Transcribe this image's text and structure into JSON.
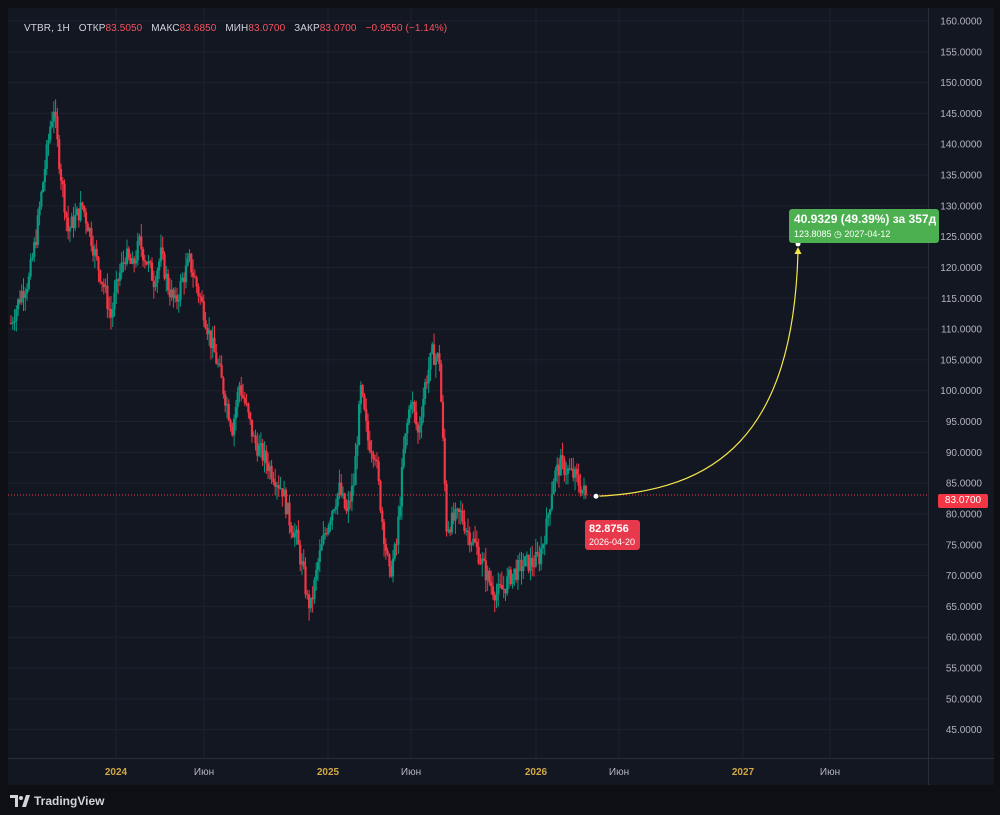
{
  "legend": {
    "symbol": "VTBR, 1H",
    "open_label": "ОТКР",
    "open_value": "83.5050",
    "high_label": "МАКС",
    "high_value": "83.6850",
    "low_label": "МИН",
    "low_value": "83.0700",
    "close_label": "ЗАКР",
    "close_value": "83.0700",
    "change": "−0.9550 (−1.14%)"
  },
  "last_price_label": "83.0700",
  "annotation": {
    "gain_main": "40.9329 (49.39%) за 357д",
    "gain_sub": "123.8085 ◷ 2027-04-12",
    "start_price": "82.8756",
    "start_date": "2026-04-20"
  },
  "branding": {
    "logo_text": "TradingView"
  },
  "colors": {
    "background": "#131722",
    "up": "#089981",
    "down": "#f23645",
    "curve": "#f5e64a",
    "gain_box": "#4caf50",
    "axis_text": "#b2b5be",
    "year_text": "#d1a847"
  },
  "chart_data": {
    "type": "candlestick",
    "symbol": "VTBR",
    "interval": "1H",
    "ylim": [
      40.4,
      162.1
    ],
    "yticks": [
      "160.0000",
      "155.0000",
      "150.0000",
      "145.0000",
      "140.0000",
      "135.0000",
      "130.0000",
      "125.0000",
      "120.0000",
      "115.0000",
      "110.0000",
      "105.0000",
      "100.0000",
      "95.0000",
      "90.0000",
      "85.0000",
      "80.0000",
      "75.0000",
      "70.0000",
      "65.0000",
      "60.0000",
      "55.0000",
      "50.0000",
      "45.0000"
    ],
    "xticks": [
      {
        "label": "2024",
        "year": true
      },
      {
        "label": "Июн",
        "year": false
      },
      {
        "label": "2025",
        "year": true
      },
      {
        "label": "Июн",
        "year": false
      },
      {
        "label": "2026",
        "year": true
      },
      {
        "label": "Июн",
        "year": false
      },
      {
        "label": "2027",
        "year": true
      },
      {
        "label": "Июн",
        "year": false
      }
    ],
    "close_path": [
      [
        0,
        111
      ],
      [
        3,
        116
      ],
      [
        5,
        118
      ],
      [
        7,
        125
      ],
      [
        9,
        134
      ],
      [
        11,
        143
      ],
      [
        12,
        146
      ],
      [
        13,
        140
      ],
      [
        14,
        135
      ],
      [
        16,
        126
      ],
      [
        18,
        128
      ],
      [
        20,
        130
      ],
      [
        22,
        126
      ],
      [
        24,
        121
      ],
      [
        26,
        117
      ],
      [
        28,
        112
      ],
      [
        30,
        118
      ],
      [
        32,
        122
      ],
      [
        34,
        120
      ],
      [
        36,
        124
      ],
      [
        38,
        121
      ],
      [
        40,
        118
      ],
      [
        42,
        122
      ],
      [
        44,
        117
      ],
      [
        46,
        114
      ],
      [
        48,
        118
      ],
      [
        50,
        121
      ],
      [
        52,
        117
      ],
      [
        54,
        113
      ],
      [
        56,
        108
      ],
      [
        58,
        104
      ],
      [
        60,
        99
      ],
      [
        62,
        94
      ],
      [
        64,
        101
      ],
      [
        66,
        97
      ],
      [
        68,
        92
      ],
      [
        70,
        90
      ],
      [
        72,
        88
      ],
      [
        74,
        86
      ],
      [
        76,
        84
      ],
      [
        78,
        79
      ],
      [
        80,
        76
      ],
      [
        82,
        70
      ],
      [
        83,
        66
      ],
      [
        84,
        65
      ],
      [
        86,
        72
      ],
      [
        88,
        77
      ],
      [
        90,
        81
      ],
      [
        92,
        84
      ],
      [
        94,
        80
      ],
      [
        96,
        85
      ],
      [
        98,
        100
      ],
      [
        100,
        92
      ],
      [
        102,
        90
      ],
      [
        104,
        79
      ],
      [
        106,
        70
      ],
      [
        108,
        75
      ],
      [
        110,
        90
      ],
      [
        112,
        99
      ],
      [
        114,
        93
      ],
      [
        116,
        101
      ],
      [
        118,
        106
      ],
      [
        120,
        105
      ],
      [
        122,
        78
      ],
      [
        124,
        79
      ],
      [
        126,
        80
      ],
      [
        128,
        77
      ],
      [
        130,
        75
      ],
      [
        132,
        72
      ],
      [
        134,
        69
      ],
      [
        136,
        67
      ],
      [
        138,
        68
      ],
      [
        140,
        70
      ],
      [
        142,
        71
      ],
      [
        144,
        72
      ],
      [
        146,
        72
      ],
      [
        148,
        73
      ],
      [
        150,
        78
      ],
      [
        152,
        86
      ],
      [
        154,
        88
      ],
      [
        156,
        87
      ],
      [
        158,
        86
      ],
      [
        160,
        84
      ],
      [
        161,
        83.07
      ]
    ],
    "candle_count": 170,
    "last_close": 83.07,
    "projection": {
      "start": {
        "price": 82.8756,
        "date": "2026-04-20"
      },
      "end": {
        "price": 123.8085,
        "date": "2027-04-12"
      },
      "change": 40.9329,
      "change_pct": 49.39,
      "days": 357
    }
  }
}
